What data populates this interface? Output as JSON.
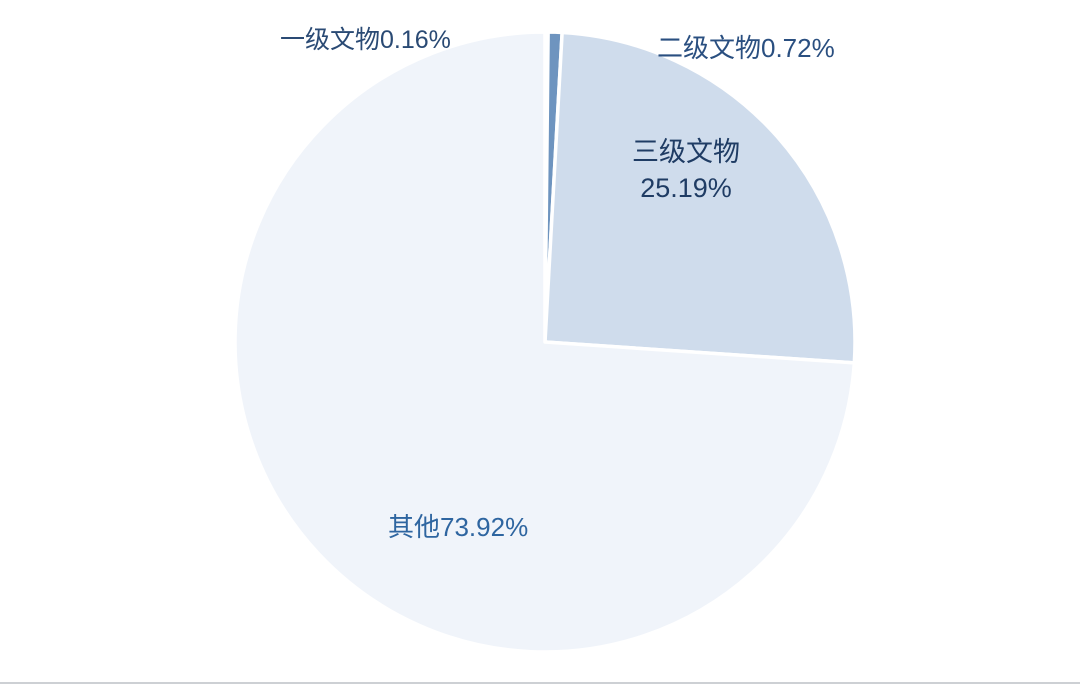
{
  "chart_data": {
    "type": "pie",
    "title": "",
    "legend": false,
    "start_angle": "top",
    "direction": "clockwise",
    "slice_border_color": "#ffffff",
    "background_color": "#ffffff",
    "slices": [
      {
        "id": "grade1",
        "name": "一级文物",
        "value": 0.16,
        "display": "一级文物0.16%",
        "color": "#4e7bab",
        "label_color": "#2a4a74"
      },
      {
        "id": "grade2",
        "name": "二级文物",
        "value": 0.72,
        "display": "二级文物0.72%",
        "color": "#6e94bf",
        "label_color": "#2a4f80"
      },
      {
        "id": "grade3",
        "name": "三级文物",
        "value": 25.19,
        "display": "三级文物 25.19%",
        "color": "#cfdcec",
        "label_color": "#1f3c64"
      },
      {
        "id": "other",
        "name": "其他",
        "value": 73.92,
        "display": "其他73.92%",
        "color": "#f0f4fa",
        "label_color": "#2e65a0"
      }
    ]
  },
  "labels": {
    "grade1": "一级文物0.16%",
    "grade2": "二级文物0.72%",
    "grade3_line1": "三级文物",
    "grade3_line2": "25.19%",
    "other": "其他73.92%"
  }
}
